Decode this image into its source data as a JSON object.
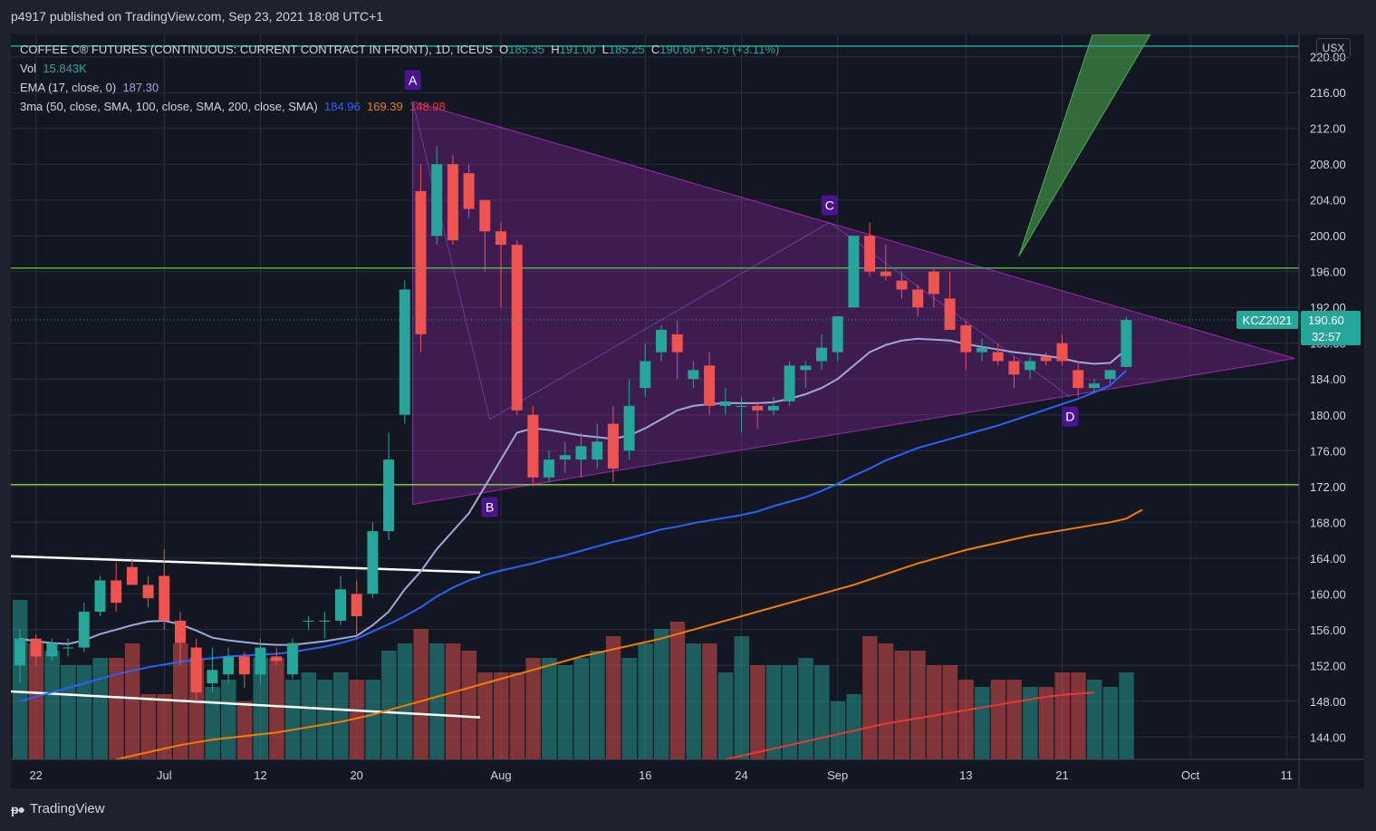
{
  "publisher": "p4917 published on TradingView.com, Sep 23, 2021 18:08 UTC+1",
  "footer_brand": "TradingView",
  "currency_button": "USX",
  "legend": {
    "symbol": "COFFEE C® FUTURES (CONTINUOUS: CURRENT CONTRACT IN FRONT), 1D, ICEUS",
    "o_label": "O",
    "o": "185.35",
    "h_label": "H",
    "h": "191.00",
    "l_label": "L",
    "l": "185.25",
    "c_label": "C",
    "c": "190.60",
    "change": "+5.75 (+3.11%)",
    "vol_label": "Vol",
    "vol": "15.843K",
    "ema_label": "EMA (17, close, 0)",
    "ema": "187.30",
    "ma3_label": "3ma (50, close, SMA, 100, close, SMA, 200, close, SMA)",
    "ma50": "184.96",
    "ma100": "169.39",
    "ma200": "148.98"
  },
  "price_tag": {
    "symbol": "KCZ2021",
    "price": "190.60",
    "countdown": "32:57"
  },
  "colors": {
    "bull": "#26a69a",
    "bear": "#ef5350",
    "ema": "#9fa8da",
    "ma50": "#2962ff",
    "ma100": "#f57c00",
    "ma200": "#e53935",
    "triangle": "#9c27b0",
    "wedge": "#4caf50",
    "hline_top": "#26a69a",
    "hline_green": "#4caf50",
    "hline_lime": "#8bc34a"
  },
  "chart_data": {
    "type": "candlestick",
    "y_axis": {
      "min": 141.5,
      "max": 222.5,
      "ticks": [
        "220.00",
        "216.00",
        "212.00",
        "208.00",
        "204.00",
        "200.00",
        "196.00",
        "192.00",
        "188.00",
        "184.00",
        "180.00",
        "176.00",
        "172.00",
        "168.00",
        "164.00",
        "160.00",
        "156.00",
        "152.00",
        "148.00",
        "144.00"
      ]
    },
    "x_axis": {
      "tick_labels": [
        "22",
        "Jul",
        "12",
        "20",
        "Aug",
        "16",
        "24",
        "Sep",
        "13",
        "21",
        "Oct",
        "11"
      ],
      "tick_index": [
        1,
        9,
        15,
        21,
        30,
        39,
        45,
        51,
        59,
        65,
        73,
        79
      ]
    },
    "candles": [
      {
        "o": 152,
        "h": 156,
        "l": 150,
        "c": 155
      },
      {
        "o": 155,
        "h": 155.5,
        "l": 152,
        "c": 153
      },
      {
        "o": 153,
        "h": 155,
        "l": 152.5,
        "c": 154.5
      },
      {
        "o": 154,
        "h": 155,
        "l": 153,
        "c": 154
      },
      {
        "o": 154,
        "h": 159,
        "l": 153.5,
        "c": 158
      },
      {
        "o": 158,
        "h": 162,
        "l": 157.5,
        "c": 161.5
      },
      {
        "o": 161.5,
        "h": 163.5,
        "l": 158,
        "c": 159
      },
      {
        "o": 163,
        "h": 164,
        "l": 161,
        "c": 161
      },
      {
        "o": 161,
        "h": 162,
        "l": 158.5,
        "c": 159.5
      },
      {
        "o": 162,
        "h": 165,
        "l": 156,
        "c": 157
      },
      {
        "o": 157,
        "h": 158,
        "l": 152,
        "c": 154.5
      },
      {
        "o": 154,
        "h": 155,
        "l": 148,
        "c": 149
      },
      {
        "o": 150,
        "h": 154,
        "l": 149,
        "c": 151.5
      },
      {
        "o": 151,
        "h": 154,
        "l": 150,
        "c": 153
      },
      {
        "o": 153,
        "h": 153.5,
        "l": 149.5,
        "c": 151
      },
      {
        "o": 151,
        "h": 155,
        "l": 150,
        "c": 154
      },
      {
        "o": 153,
        "h": 154,
        "l": 152,
        "c": 152.5
      },
      {
        "o": 151,
        "h": 155,
        "l": 150.5,
        "c": 154.5
      },
      {
        "o": 157,
        "h": 157.5,
        "l": 156,
        "c": 157
      },
      {
        "o": 157,
        "h": 158,
        "l": 155,
        "c": 157
      },
      {
        "o": 157,
        "h": 162,
        "l": 156.5,
        "c": 160.5
      },
      {
        "o": 160,
        "h": 161.5,
        "l": 155,
        "c": 157.5
      },
      {
        "o": 160,
        "h": 168,
        "l": 159.5,
        "c": 167
      },
      {
        "o": 167,
        "h": 178,
        "l": 166,
        "c": 175
      },
      {
        "o": 180,
        "h": 195,
        "l": 179,
        "c": 194
      },
      {
        "o": 205,
        "h": 208,
        "l": 187,
        "c": 189
      },
      {
        "o": 200,
        "h": 210,
        "l": 199,
        "c": 208
      },
      {
        "o": 208,
        "h": 209,
        "l": 199,
        "c": 199.5
      },
      {
        "o": 207,
        "h": 208,
        "l": 202,
        "c": 203
      },
      {
        "o": 204,
        "h": 204,
        "l": 196,
        "c": 200.5
      },
      {
        "o": 200.5,
        "h": 201.5,
        "l": 192,
        "c": 199
      },
      {
        "o": 199,
        "h": 199.5,
        "l": 180,
        "c": 180.5
      },
      {
        "o": 180,
        "h": 181,
        "l": 172,
        "c": 173
      },
      {
        "o": 173,
        "h": 176,
        "l": 172.5,
        "c": 175
      },
      {
        "o": 175,
        "h": 177,
        "l": 173.5,
        "c": 175.5
      },
      {
        "o": 175,
        "h": 178,
        "l": 173,
        "c": 176.5
      },
      {
        "o": 175,
        "h": 179,
        "l": 174,
        "c": 177
      },
      {
        "o": 179,
        "h": 181,
        "l": 172.5,
        "c": 174
      },
      {
        "o": 176,
        "h": 184,
        "l": 175,
        "c": 181
      },
      {
        "o": 183,
        "h": 188,
        "l": 182,
        "c": 186
      },
      {
        "o": 187,
        "h": 190,
        "l": 186,
        "c": 189.5
      },
      {
        "o": 189,
        "h": 190.5,
        "l": 184,
        "c": 187
      },
      {
        "o": 184,
        "h": 186,
        "l": 183,
        "c": 185
      },
      {
        "o": 185.5,
        "h": 187,
        "l": 180,
        "c": 181
      },
      {
        "o": 181,
        "h": 183,
        "l": 180,
        "c": 181.5
      },
      {
        "o": 181,
        "h": 182,
        "l": 178,
        "c": 181
      },
      {
        "o": 181,
        "h": 181.5,
        "l": 178.5,
        "c": 180.5
      },
      {
        "o": 180.5,
        "h": 182,
        "l": 180,
        "c": 181
      },
      {
        "o": 181.5,
        "h": 186,
        "l": 181,
        "c": 185.5
      },
      {
        "o": 185,
        "h": 186,
        "l": 183,
        "c": 185.5
      },
      {
        "o": 186,
        "h": 189,
        "l": 185,
        "c": 187.5
      },
      {
        "o": 187,
        "h": 191,
        "l": 186,
        "c": 191
      },
      {
        "o": 192,
        "h": 200,
        "l": 192,
        "c": 200
      },
      {
        "o": 200,
        "h": 201.5,
        "l": 195.5,
        "c": 196
      },
      {
        "o": 196,
        "h": 199,
        "l": 195,
        "c": 195.5
      },
      {
        "o": 195,
        "h": 196,
        "l": 193,
        "c": 194
      },
      {
        "o": 194,
        "h": 194.5,
        "l": 191,
        "c": 192
      },
      {
        "o": 196,
        "h": 196.5,
        "l": 192,
        "c": 193.5
      },
      {
        "o": 193,
        "h": 196,
        "l": 189.5,
        "c": 189.5
      },
      {
        "o": 190,
        "h": 190.5,
        "l": 185,
        "c": 187
      },
      {
        "o": 187,
        "h": 188.5,
        "l": 186,
        "c": 187.5
      },
      {
        "o": 187,
        "h": 188,
        "l": 185.5,
        "c": 186
      },
      {
        "o": 186,
        "h": 186.5,
        "l": 183,
        "c": 184.5
      },
      {
        "o": 185,
        "h": 186.5,
        "l": 184,
        "c": 186
      },
      {
        "o": 186.5,
        "h": 187,
        "l": 185.5,
        "c": 186
      },
      {
        "o": 188,
        "h": 189,
        "l": 185.5,
        "c": 186
      },
      {
        "o": 185,
        "h": 186,
        "l": 182,
        "c": 183
      },
      {
        "o": 183,
        "h": 184,
        "l": 182.5,
        "c": 183.5
      },
      {
        "o": 184,
        "h": 185,
        "l": 183.5,
        "c": 185
      },
      {
        "o": 185.35,
        "h": 191,
        "l": 185.25,
        "c": 190.6
      }
    ],
    "volume": [
      22,
      16,
      15,
      13,
      13,
      14,
      14,
      16,
      9,
      9,
      16,
      14,
      10,
      11,
      8,
      14,
      14,
      11,
      12,
      11,
      12,
      11,
      11,
      15,
      16,
      18,
      16,
      16,
      15,
      12,
      12,
      12,
      14,
      14,
      13,
      14,
      15,
      17,
      14,
      16,
      18,
      19,
      16,
      16,
      12,
      17,
      13,
      13,
      13,
      14,
      13,
      8,
      9,
      17,
      16,
      15,
      15,
      13,
      13,
      11,
      10,
      11,
      11,
      10,
      10,
      12,
      12,
      11,
      10,
      12
    ],
    "ema17": [
      155,
      154.7,
      154.5,
      154.4,
      154.8,
      155.5,
      156,
      156.5,
      156.9,
      157,
      156.6,
      155.9,
      155.1,
      154.8,
      154.6,
      154.4,
      154.3,
      154.3,
      154.5,
      154.7,
      155,
      155.3,
      156.5,
      158,
      160.5,
      162.5,
      165,
      167,
      169,
      172,
      175,
      178,
      178.5,
      178.3,
      178,
      177.7,
      177.5,
      177.3,
      177.7,
      178.5,
      179.5,
      180.5,
      181,
      181.2,
      181.3,
      181.3,
      181.3,
      181.4,
      181.8,
      182.3,
      183,
      184,
      185.5,
      187,
      187.8,
      188.3,
      188.5,
      188.4,
      188.3,
      187.9,
      187.6,
      187.3,
      187,
      186.8,
      186.6,
      186.3,
      185.9,
      185.7,
      185.8,
      187.3
    ],
    "sma50": [
      148,
      148.5,
      149,
      149.5,
      150,
      150.5,
      151,
      151.4,
      151.8,
      152.1,
      152.4,
      152.6,
      152.8,
      153,
      153.1,
      153.2,
      153.3,
      153.5,
      153.8,
      154.1,
      154.5,
      155,
      155.8,
      156.6,
      157.5,
      158.5,
      159.7,
      160.7,
      161.5,
      162.1,
      162.6,
      163,
      163.4,
      163.9,
      164.3,
      164.8,
      165.3,
      165.8,
      166.2,
      166.7,
      167.2,
      167.5,
      167.9,
      168.2,
      168.5,
      168.8,
      169.2,
      169.8,
      170.3,
      170.8,
      171.5,
      172.3,
      173.2,
      174,
      174.9,
      175.6,
      176.3,
      176.8,
      177.3,
      177.8,
      178.3,
      178.8,
      179.4,
      180,
      180.6,
      181.2,
      181.8,
      182.5,
      183.3,
      184.96
    ],
    "sma100_segment": {
      "start_index": 6,
      "values": [
        141.5,
        141.9,
        142.3,
        142.7,
        143.1,
        143.4,
        143.7,
        143.9,
        144.1,
        144.3,
        144.5,
        144.8,
        145.1,
        145.4,
        145.7,
        146.1,
        146.5,
        147,
        147.5,
        148,
        148.5,
        149,
        149.5,
        150,
        150.5,
        151,
        151.5,
        152,
        152.5,
        153,
        153.4,
        153.8,
        154.2,
        154.6,
        155,
        155.5,
        156,
        156.5,
        157,
        157.5,
        158,
        158.5,
        159,
        159.5,
        160,
        160.5,
        161,
        161.6,
        162.2,
        162.8,
        163.4,
        163.9,
        164.4,
        164.9,
        165.3,
        165.7,
        166.1,
        166.5,
        166.8,
        167.1,
        167.4,
        167.7,
        168,
        168.4,
        169.39
      ]
    },
    "sma200_segment": {
      "start_index": 44,
      "values": [
        141.5,
        141.9,
        142.3,
        142.7,
        143.1,
        143.5,
        143.9,
        144.3,
        144.7,
        145.1,
        145.5,
        145.8,
        146.1,
        146.4,
        146.7,
        147,
        147.3,
        147.6,
        147.9,
        148.2,
        148.5,
        148.7,
        148.85,
        148.98
      ]
    },
    "annotations": [
      "A",
      "B",
      "C",
      "D"
    ],
    "hlines": [
      221.2,
      196.4,
      172.2
    ]
  }
}
